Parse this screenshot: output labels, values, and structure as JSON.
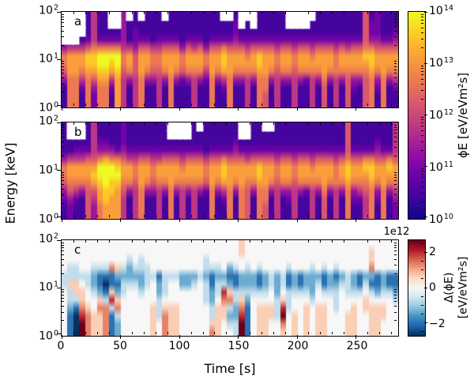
{
  "figure": {
    "background": "#ffffff",
    "xlabel": "Time [s]",
    "ylabel": "Energy [keV]"
  },
  "panels": [
    {
      "letter": "a"
    },
    {
      "letter": "b"
    },
    {
      "letter": "c"
    }
  ],
  "axes": {
    "time_ticks": [
      "0",
      "50",
      "100",
      "150",
      "200",
      "250"
    ],
    "time_tick_values": [
      0,
      50,
      100,
      150,
      200,
      250
    ],
    "time_max": 285,
    "energy_ticks": [
      {
        "b": "10",
        "e": "2"
      },
      {
        "b": "10",
        "e": "1"
      },
      {
        "b": "10",
        "e": "0"
      }
    ],
    "energy_scale": "log",
    "energy_range_kev": [
      1,
      100
    ]
  },
  "colorbar_flux": {
    "label": "ϕE [eV/eVm²s]",
    "ticks": [
      {
        "b": "10",
        "e": "14"
      },
      {
        "b": "10",
        "e": "13"
      },
      {
        "b": "10",
        "e": "12"
      },
      {
        "b": "10",
        "e": "11"
      },
      {
        "b": "10",
        "e": "10"
      }
    ],
    "colormap": "plasma",
    "colors": [
      "#0d0887",
      "#41049d",
      "#6a00a8",
      "#8f0da4",
      "#b12a90",
      "#cc4778",
      "#e16462",
      "#f2844b",
      "#fca636",
      "#fcce25",
      "#f0f921"
    ]
  },
  "colorbar_delta": {
    "label_line1": "Δ(ϕE)",
    "label_line2": "[eV/eVm²s]",
    "offset_text": "1e12",
    "ticks": [
      "2",
      "0",
      "−2"
    ],
    "tick_values": [
      2,
      0,
      -2
    ],
    "vmax_1e12": 2.7,
    "colormap": "RdBu_r",
    "colors": [
      "#053061",
      "#2166ac",
      "#4393c3",
      "#92c5de",
      "#d1e5f0",
      "#f7f7f7",
      "#fddbc7",
      "#f4a582",
      "#d6604d",
      "#b2182b",
      "#67001f"
    ]
  },
  "chart_data": [
    {
      "type": "heatmap",
      "panel": "a",
      "xlabel": "Time [s]",
      "x_range": [
        0,
        285
      ],
      "x_bin_seconds": 5,
      "ylabel": "Energy [keV]",
      "y_scale": "log",
      "y_range": [
        1,
        100
      ],
      "y_bins": 12,
      "row_order": "top(100keV)-to-bottom(1keV)",
      "value_label": "ϕE [eV/eVm²s]",
      "value_encoding": "digit d 0-9 maps to log10(phiE)=10+4*d/9 ; '.' = no data (white)",
      "columns": [
        "....36653111",
        "....47776666",
        "....47776666",
        "...147764211",
        "111258876666",
        "444468875322",
        "111269987666",
        "111269987666",
        "..1269874211",
        "..1269987777",
        "333346654444",
        ".11147763111",
        "112235554444",
        ".11257776666",
        "111257763111",
        "111146653111",
        "111246654444",
        ".11257763111",
        "111257776666",
        "111257763111",
        "111136652111",
        "111257763111",
        "111247764444",
        "111257763111",
        "111136642111",
        "111257776666",
        "111257763111",
        ".11268874211",
        ".11257776666",
        "122357763111",
        "..1257763111",
        ".11246764444",
        "..1257763111",
        "111258876666",
        "111257776655",
        "111257763111",
        "111246654444",
        "111257763111",
        "..1257763111",
        "..1246654444",
        "..1257763111",
        "..1257762111",
        ".11246764444",
        "111257763111",
        "111257776555",
        "111257763111",
        "111246664444",
        "111257763111",
        "111247765555",
        "111257763211",
        "111257763111",
        "555568765555",
        "122368876666",
        "222357763211",
        "111257776666",
        "111257763111",
        "112357764211"
      ]
    },
    {
      "type": "heatmap",
      "panel": "b",
      "xlabel": "Time [s]",
      "x_range": [
        0,
        285
      ],
      "x_bin_seconds": 5,
      "ylabel": "Energy [keV]",
      "y_scale": "log",
      "y_range": [
        1,
        100
      ],
      "y_bins": 12,
      "row_order": "top(100keV)-to-bottom(1keV)",
      "value_label": "ϕE [eV/eVm²s]",
      "value_encoding": "digit d 0-9 maps to log10(phiE)=10+4*d/9 ; '.' = no data (white)",
      "columns": [
        "111136653211",
        "..1147765322",
        "..1247764211",
        "..1247763111",
        "111257765555",
        "444457875433",
        "112369987766",
        "112379998877",
        "111369988777",
        "111268987777",
        "222357765444",
        "111247763111",
        "111246654444",
        "111257776666",
        "111257763111",
        "111246653111",
        "111247764444",
        "111257763111",
        "..1257776666",
        "..1257763111",
        "..1246764444",
        "..1257763111",
        "111257764444",
        ".11257763111",
        "111146652111",
        "111257776666",
        "111257763111",
        "111268874211",
        "111257776666",
        "112357763111",
        "..1257776666",
        "..1247765555",
        "111257763111",
        "111258876666",
        ".11257776655",
        ".11257763111",
        "111246654444",
        "111257763111",
        "111257763211",
        "111246654444",
        "111257763111",
        "111257762111",
        "111246764444",
        "111257763111",
        "111257776555",
        "111257763111",
        "111246664444",
        "111257763111",
        "555568876666",
        "111257763211",
        "111257764211",
        "111268765444",
        "111268876666",
        "112357763211",
        "111257776666",
        "111268763111",
        "444457764322"
      ]
    },
    {
      "type": "heatmap",
      "panel": "c",
      "xlabel": "Time [s]",
      "x_range": [
        0,
        285
      ],
      "x_bin_seconds": 5,
      "ylabel": "Energy [keV]",
      "y_scale": "log",
      "y_range": [
        1,
        100
      ],
      "y_bins": 12,
      "row_order": "top(100keV)-to-bottom(1keV)",
      "value_label": "Δ(ϕE) [eV/eVm²s]",
      "value_encoding": "digit d 0-8 maps to delta = (d-4)/4 * 2.7e12 (4 = 0, 0 = -2.7e12 dark blue, 8 = +2.7e12 dark red)",
      "columns": [
        "444433444444",
        "444335332111",
        "444335531000",
        "444434556788",
        "444433445666",
        "444322344555",
        "444311256555",
        "444310136666",
        "444611573111",
        "444521256322",
        "444323344444",
        "443223444444",
        "444323444444",
        "443322344444",
        "444333444444",
        "444434445555",
        "444412233344",
        "444433345666",
        "444434445555",
        "444434445555",
        "444422444444",
        "444422444444",
        "444423444444",
        "444434444444",
        "443323334444",
        "444311223356",
        "444323345555",
        "444423765544",
        "444212563234",
        "444311332233",
        "554422356788",
        "444322321111",
        "444422344444",
        "444311345555",
        "444422345555",
        "444433445544",
        "444422233344",
        "444433457865",
        "444311333444",
        "444422344555",
        "444411344444",
        "444422345555",
        "444322234444",
        "444423445555",
        "444311345555",
        "444422344444",
        "444312333444",
        "444423444444",
        "444433344555",
        "444422345555",
        "444411344444",
        "444423455444",
        "455621345555",
        "444411245555",
        "444422345544",
        "444411344444",
        "444411234444"
      ]
    }
  ]
}
